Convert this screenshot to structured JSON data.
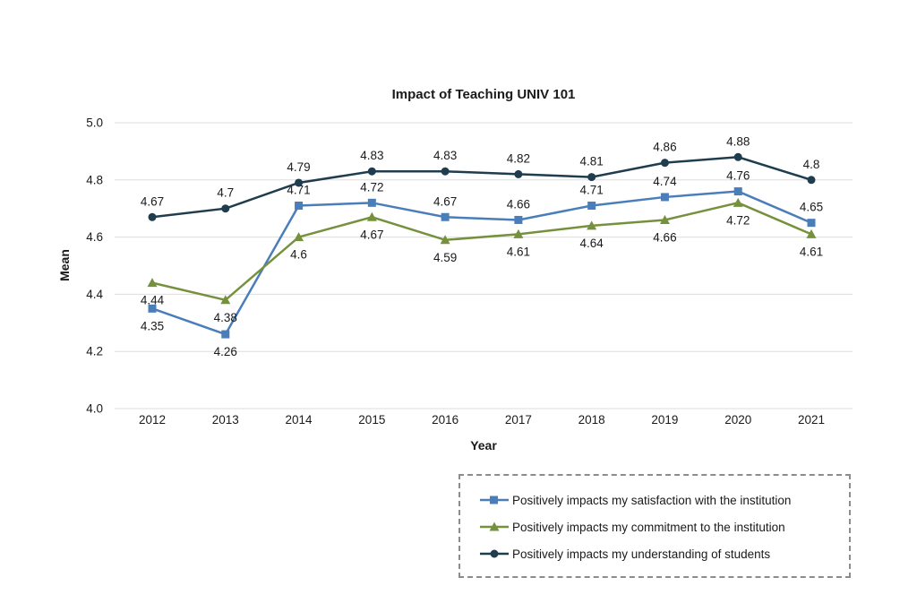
{
  "title": "Impact of Teaching UNIV 101",
  "xlabel": "Year",
  "ylabel": "Mean",
  "chart_data": {
    "type": "line",
    "title": "Impact of Teaching UNIV 101",
    "xlabel": "Year",
    "ylabel": "Mean",
    "categories": [
      "2012",
      "2013",
      "2014",
      "2015",
      "2016",
      "2017",
      "2018",
      "2019",
      "2020",
      "2021"
    ],
    "series": [
      {
        "name": "Positively impacts my satisfaction with the institution",
        "color": "#4a7ebb",
        "marker": "square",
        "values": [
          4.35,
          4.26,
          4.71,
          4.72,
          4.67,
          4.66,
          4.71,
          4.74,
          4.76,
          4.65
        ],
        "label_position": [
          "below",
          "below",
          "above",
          "above",
          "above",
          "above",
          "above",
          "above",
          "above",
          "above"
        ]
      },
      {
        "name": "Positively impacts my commitment to the institution",
        "color": "#76913d",
        "marker": "triangle",
        "values": [
          4.44,
          4.38,
          4.6,
          4.67,
          4.59,
          4.61,
          4.64,
          4.66,
          4.72,
          4.61
        ],
        "label_position": "below"
      },
      {
        "name": "Positively impacts my understanding of students",
        "color": "#1f3d4e",
        "marker": "circle",
        "values": [
          4.67,
          4.7,
          4.79,
          4.83,
          4.83,
          4.82,
          4.81,
          4.86,
          4.88,
          4.8
        ],
        "label_position": "above"
      }
    ],
    "ylim": [
      4.0,
      5.0
    ],
    "yticks": [
      "5.0",
      "4.8",
      "4.6",
      "4.4",
      "4.2",
      "4.0"
    ],
    "grid": true,
    "grid_color": "#dddddd",
    "text_color": "#1a1a1a",
    "legend_position": "bottom-right",
    "legend_border_color": "#8c8c8c"
  }
}
